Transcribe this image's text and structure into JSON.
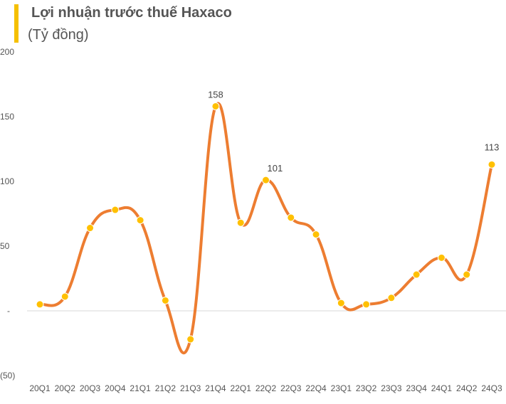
{
  "chart_data": {
    "type": "line",
    "title": "Lợi nhuận trước thuế Haxaco",
    "subtitle": "(Tỷ đồng)",
    "categories": [
      "20Q1",
      "20Q2",
      "20Q3",
      "20Q4",
      "21Q1",
      "21Q2",
      "21Q3",
      "21Q4",
      "22Q1",
      "22Q2",
      "22Q3",
      "22Q4",
      "23Q1",
      "23Q2",
      "23Q3",
      "23Q4",
      "24Q1",
      "24Q2",
      "24Q3"
    ],
    "series": [
      {
        "values": [
          5,
          11,
          64,
          78,
          70,
          8,
          -22,
          158,
          68,
          101,
          72,
          59,
          6,
          5,
          10,
          28,
          41,
          28,
          113
        ]
      }
    ],
    "data_labels": [
      {
        "index": 7,
        "text": "158"
      },
      {
        "index": 9,
        "text": "101"
      },
      {
        "index": 18,
        "text": "113"
      }
    ],
    "y_ticks": [
      {
        "value": 200,
        "label": "200"
      },
      {
        "value": 150,
        "label": "150"
      },
      {
        "value": 100,
        "label": "100"
      },
      {
        "value": 50,
        "label": "50"
      },
      {
        "value": 0,
        "label": "-"
      },
      {
        "value": -50,
        "label": "(50)"
      }
    ],
    "ylim": [
      -50,
      200
    ],
    "grid": false,
    "legend": "none",
    "colors": {
      "line": "#ed7d31",
      "marker": "#ffc000",
      "accent": "#f5c000",
      "axis": "#d9d9d9"
    }
  }
}
